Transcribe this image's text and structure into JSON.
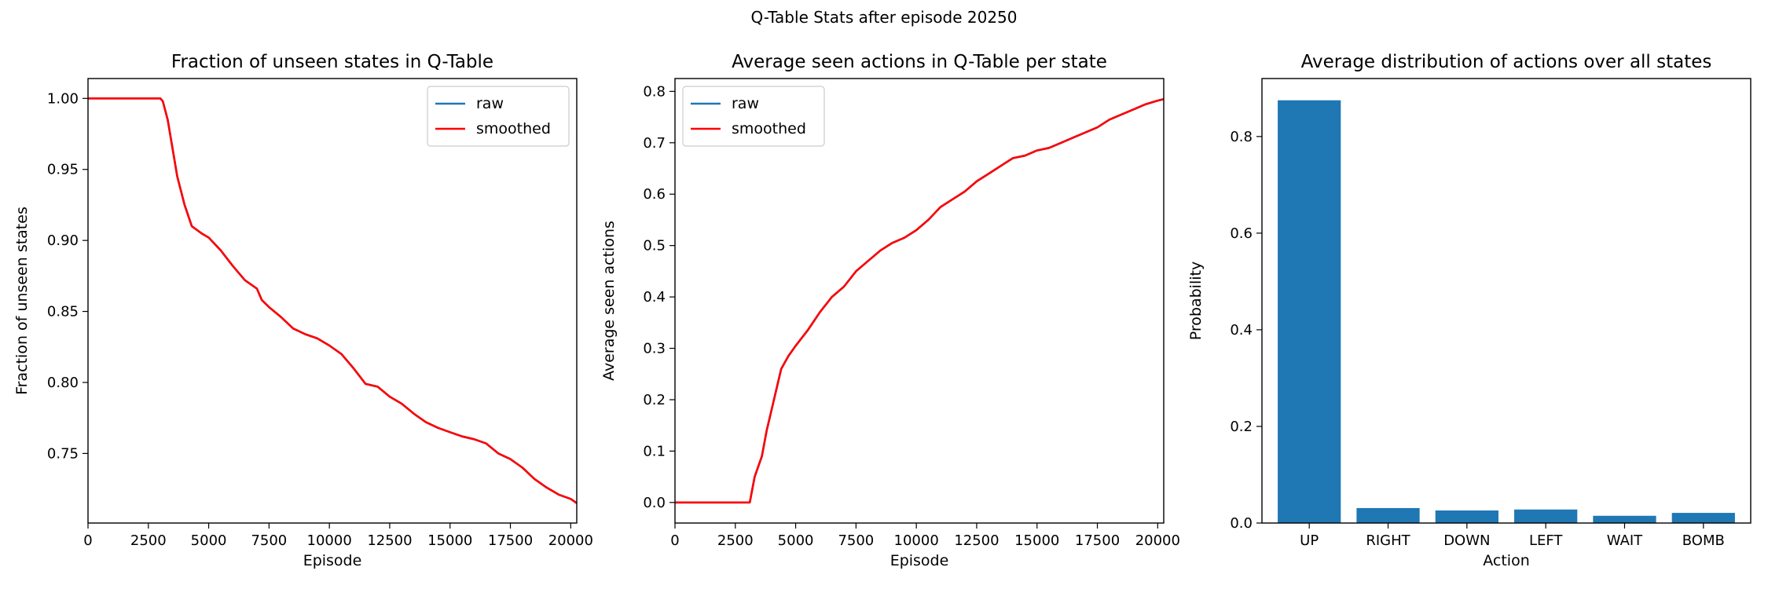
{
  "suptitle": "Q-Table Stats after episode 20250",
  "chart_data": [
    {
      "type": "line",
      "title": "Fraction of unseen states in Q-Table",
      "xlabel": "Episode",
      "ylabel": "Fraction of unseen states",
      "xlim": [
        0,
        20250
      ],
      "ylim": [
        0.701,
        1.014
      ],
      "xticks": [
        "0",
        "2500",
        "5000",
        "7500",
        "10000",
        "12500",
        "15000",
        "17500",
        "20000"
      ],
      "yticks": [
        "0.75",
        "0.80",
        "0.85",
        "0.90",
        "0.95",
        "1.00"
      ],
      "legend": "top-right",
      "series": [
        {
          "name": "raw",
          "color": "#1f77b4",
          "x": [
            0,
            3000,
            3100,
            3300,
            3500,
            3700,
            4000,
            4300,
            4700,
            5000,
            5500,
            6000,
            6500,
            7000,
            7200,
            7500,
            8000,
            8500,
            9000,
            9500,
            10000,
            10500,
            11000,
            11500,
            12000,
            12500,
            13000,
            13500,
            14000,
            14500,
            15000,
            15500,
            16000,
            16500,
            17000,
            17500,
            18000,
            18500,
            19000,
            19500,
            20000,
            20250
          ],
          "y": [
            1.0,
            1.0,
            0.998,
            0.985,
            0.965,
            0.945,
            0.925,
            0.91,
            0.905,
            0.902,
            0.893,
            0.882,
            0.872,
            0.866,
            0.858,
            0.853,
            0.846,
            0.838,
            0.834,
            0.831,
            0.826,
            0.82,
            0.81,
            0.799,
            0.797,
            0.79,
            0.785,
            0.778,
            0.772,
            0.768,
            0.765,
            0.762,
            0.76,
            0.757,
            0.75,
            0.746,
            0.74,
            0.732,
            0.726,
            0.721,
            0.718,
            0.715
          ]
        },
        {
          "name": "smoothed",
          "color": "#ff0000",
          "x": [
            0,
            3000,
            3100,
            3300,
            3500,
            3700,
            4000,
            4300,
            4700,
            5000,
            5500,
            6000,
            6500,
            7000,
            7200,
            7500,
            8000,
            8500,
            9000,
            9500,
            10000,
            10500,
            11000,
            11500,
            12000,
            12500,
            13000,
            13500,
            14000,
            14500,
            15000,
            15500,
            16000,
            16500,
            17000,
            17500,
            18000,
            18500,
            19000,
            19500,
            20000,
            20250
          ],
          "y": [
            1.0,
            1.0,
            0.998,
            0.985,
            0.965,
            0.945,
            0.925,
            0.91,
            0.905,
            0.902,
            0.893,
            0.882,
            0.872,
            0.866,
            0.858,
            0.853,
            0.846,
            0.838,
            0.834,
            0.831,
            0.826,
            0.82,
            0.81,
            0.799,
            0.797,
            0.79,
            0.785,
            0.778,
            0.772,
            0.768,
            0.765,
            0.762,
            0.76,
            0.757,
            0.75,
            0.746,
            0.74,
            0.732,
            0.726,
            0.721,
            0.718,
            0.715
          ]
        }
      ]
    },
    {
      "type": "line",
      "title": "Average seen actions in Q-Table per state",
      "xlabel": "Episode",
      "ylabel": "Average seen actions",
      "xlim": [
        0,
        20250
      ],
      "ylim": [
        -0.04,
        0.825
      ],
      "xticks": [
        "0",
        "2500",
        "5000",
        "7500",
        "10000",
        "12500",
        "15000",
        "17500",
        "20000"
      ],
      "yticks": [
        "0.0",
        "0.1",
        "0.2",
        "0.3",
        "0.4",
        "0.5",
        "0.6",
        "0.7",
        "0.8"
      ],
      "legend": "top-left",
      "series": [
        {
          "name": "raw",
          "color": "#1f77b4",
          "x": [
            0,
            3100,
            3300,
            3600,
            3800,
            4000,
            4200,
            4400,
            4700,
            5000,
            5500,
            6000,
            6500,
            7000,
            7500,
            8000,
            8500,
            9000,
            9500,
            10000,
            10500,
            11000,
            11500,
            12000,
            12500,
            13000,
            13500,
            14000,
            14500,
            15000,
            15500,
            16000,
            16500,
            17000,
            17500,
            18000,
            18500,
            19000,
            19500,
            20000,
            20250
          ],
          "y": [
            0.0,
            0.0,
            0.05,
            0.09,
            0.14,
            0.18,
            0.22,
            0.26,
            0.285,
            0.305,
            0.335,
            0.37,
            0.4,
            0.42,
            0.45,
            0.47,
            0.49,
            0.505,
            0.515,
            0.53,
            0.55,
            0.575,
            0.59,
            0.605,
            0.625,
            0.64,
            0.655,
            0.67,
            0.675,
            0.685,
            0.69,
            0.7,
            0.71,
            0.72,
            0.73,
            0.745,
            0.755,
            0.765,
            0.775,
            0.782,
            0.785
          ]
        },
        {
          "name": "smoothed",
          "color": "#ff0000",
          "x": [
            0,
            3100,
            3300,
            3600,
            3800,
            4000,
            4200,
            4400,
            4700,
            5000,
            5500,
            6000,
            6500,
            7000,
            7500,
            8000,
            8500,
            9000,
            9500,
            10000,
            10500,
            11000,
            11500,
            12000,
            12500,
            13000,
            13500,
            14000,
            14500,
            15000,
            15500,
            16000,
            16500,
            17000,
            17500,
            18000,
            18500,
            19000,
            19500,
            20000,
            20250
          ],
          "y": [
            0.0,
            0.0,
            0.05,
            0.09,
            0.14,
            0.18,
            0.22,
            0.26,
            0.285,
            0.305,
            0.335,
            0.37,
            0.4,
            0.42,
            0.45,
            0.47,
            0.49,
            0.505,
            0.515,
            0.53,
            0.55,
            0.575,
            0.59,
            0.605,
            0.625,
            0.64,
            0.655,
            0.67,
            0.675,
            0.685,
            0.69,
            0.7,
            0.71,
            0.72,
            0.73,
            0.745,
            0.755,
            0.765,
            0.775,
            0.782,
            0.785
          ]
        }
      ]
    },
    {
      "type": "bar",
      "title": "Average distribution of actions over all states",
      "xlabel": "Action",
      "ylabel": "Probability",
      "ylim": [
        0,
        0.92
      ],
      "yticks": [
        "0.0",
        "0.2",
        "0.4",
        "0.6",
        "0.8"
      ],
      "categories": [
        "UP",
        "RIGHT",
        "DOWN",
        "LEFT",
        "WAIT",
        "BOMB"
      ],
      "values": [
        0.875,
        0.031,
        0.026,
        0.028,
        0.015,
        0.021
      ],
      "color": "#1f77b4"
    }
  ]
}
